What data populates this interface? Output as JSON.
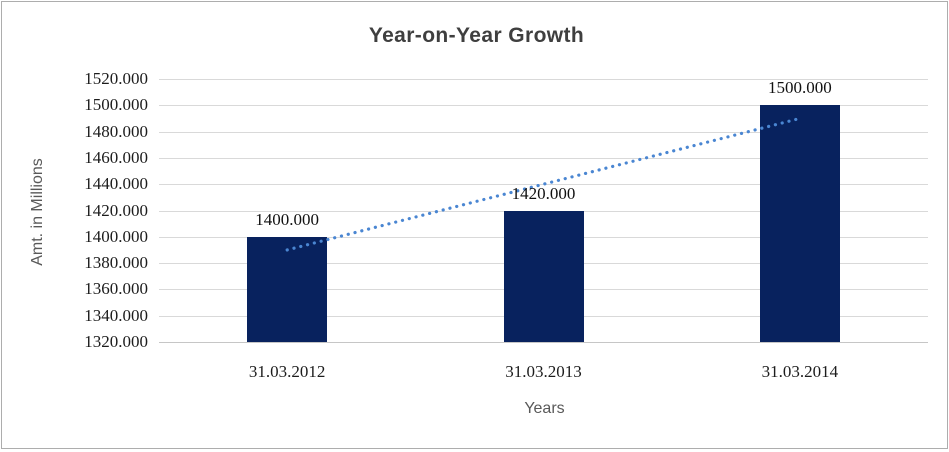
{
  "chart_data": {
    "type": "bar",
    "title": "Year-on-Year Growth",
    "xlabel": "Years",
    "ylabel": "Amt. in Millions",
    "categories": [
      "31.03.2012",
      "31.03.2013",
      "31.03.2014"
    ],
    "values": [
      1400.0,
      1420.0,
      1500.0
    ],
    "data_labels": [
      "1400.000",
      "1420.000",
      "1500.000"
    ],
    "ylim": [
      1320,
      1520
    ],
    "ytick_step": 20,
    "ytick_labels": [
      "1520.000",
      "1500.000",
      "1480.000",
      "1460.000",
      "1440.000",
      "1420.000",
      "1400.000",
      "1380.000",
      "1360.000",
      "1340.000",
      "1320.000"
    ],
    "grid": true,
    "legend": false,
    "trendline": {
      "type": "linear",
      "style": "dotted",
      "fitted_values": [
        1390,
        1440,
        1490
      ]
    },
    "colors": {
      "bar": "#08225E",
      "trendline": "#4A86D2",
      "gridline": "#D9D9D9",
      "axis_line": "#C6C6C6",
      "title_text": "#3F3F3F",
      "axis_title_text": "#595959",
      "tick_text": "#1C1C1C",
      "background": "#FFFFFF",
      "border": "#ADADAD"
    }
  }
}
